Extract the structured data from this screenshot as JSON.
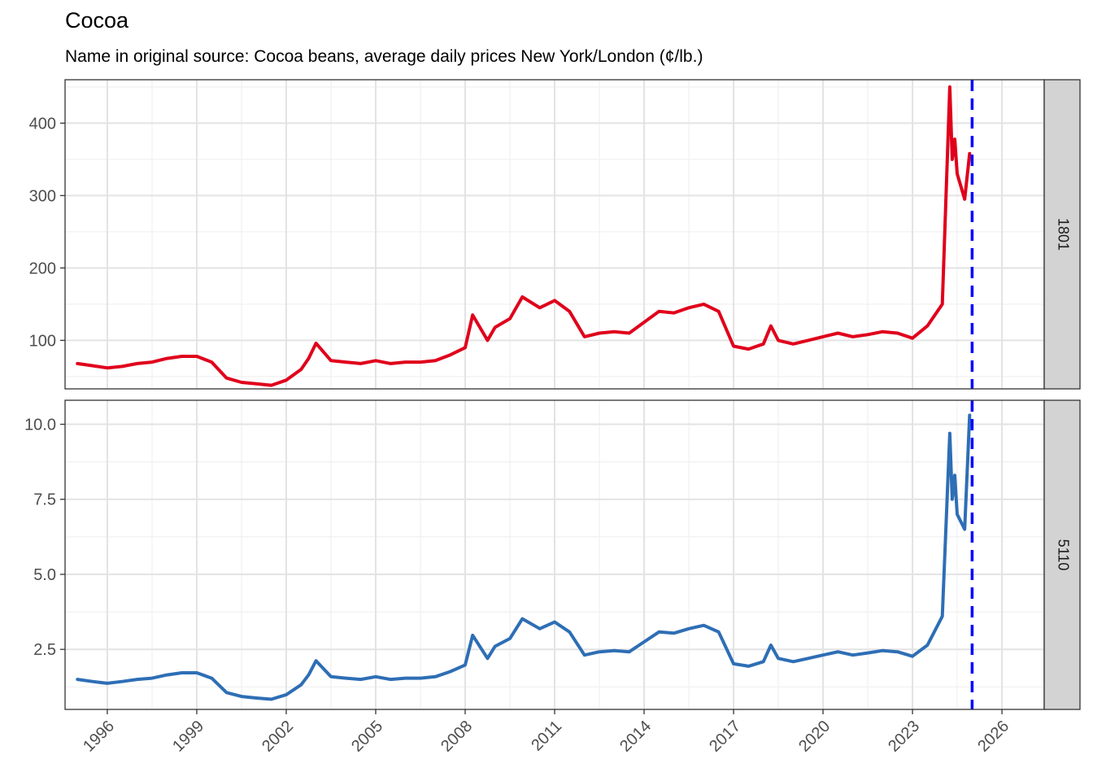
{
  "chart_data": {
    "type": "line",
    "title": "Cocoa",
    "subtitle": "Name in original source: Cocoa beans, average daily prices New York/London (¢/lb.)",
    "xlabel": "",
    "ylabel": "",
    "x_ticks": [
      "1996",
      "1999",
      "2002",
      "2005",
      "2008",
      "2011",
      "2014",
      "2017",
      "2020",
      "2023",
      "2026"
    ],
    "xlim": [
      "1994-08",
      "2027-06"
    ],
    "grid": true,
    "vline": {
      "x": "2025-01",
      "color": "#0000ff",
      "style": "dashed"
    },
    "panels": [
      {
        "label": "1801",
        "color": "#e0001b",
        "ylim": [
          33,
          460
        ],
        "y_ticks": [
          100,
          200,
          300,
          400
        ],
        "y_tick_labels": [
          "100",
          "200",
          "300",
          "400"
        ],
        "x": [
          "1995-01",
          "1995-07",
          "1996-01",
          "1996-07",
          "1997-01",
          "1997-07",
          "1998-01",
          "1998-07",
          "1999-01",
          "1999-07",
          "2000-01",
          "2000-07",
          "2001-01",
          "2001-07",
          "2002-01",
          "2002-07",
          "2002-10",
          "2003-01",
          "2003-07",
          "2004-01",
          "2004-07",
          "2005-01",
          "2005-07",
          "2006-01",
          "2006-07",
          "2007-01",
          "2007-07",
          "2008-01",
          "2008-04",
          "2008-10",
          "2009-01",
          "2009-07",
          "2009-12",
          "2010-07",
          "2011-01",
          "2011-07",
          "2012-01",
          "2012-07",
          "2013-01",
          "2013-07",
          "2014-01",
          "2014-07",
          "2015-01",
          "2015-07",
          "2016-01",
          "2016-07",
          "2017-01",
          "2017-07",
          "2018-01",
          "2018-04",
          "2018-07",
          "2019-01",
          "2019-07",
          "2020-01",
          "2020-07",
          "2021-01",
          "2021-07",
          "2022-01",
          "2022-07",
          "2023-01",
          "2023-07",
          "2024-01",
          "2024-04",
          "2024-05",
          "2024-06",
          "2024-07",
          "2024-10",
          "2024-12"
        ],
        "y": [
          68,
          65,
          62,
          64,
          68,
          70,
          75,
          78,
          78,
          70,
          48,
          42,
          40,
          38,
          45,
          60,
          75,
          96,
          72,
          70,
          68,
          72,
          68,
          70,
          70,
          72,
          80,
          90,
          135,
          100,
          118,
          130,
          160,
          145,
          155,
          140,
          105,
          110,
          112,
          110,
          125,
          140,
          138,
          145,
          150,
          140,
          92,
          88,
          95,
          120,
          100,
          95,
          100,
          105,
          110,
          105,
          108,
          112,
          110,
          103,
          120,
          150,
          450,
          350,
          378,
          330,
          295,
          358
        ]
      },
      {
        "label": "5110",
        "color": "#2e6eb5",
        "ylim": [
          0.5,
          10.8
        ],
        "y_ticks": [
          2.5,
          5.0,
          7.5,
          10.0
        ],
        "y_tick_labels": [
          "2.5",
          "5.0",
          "7.5",
          "10.0"
        ],
        "x": [
          "1995-01",
          "1995-07",
          "1996-01",
          "1996-07",
          "1997-01",
          "1997-07",
          "1998-01",
          "1998-07",
          "1999-01",
          "1999-07",
          "2000-01",
          "2000-07",
          "2001-01",
          "2001-07",
          "2002-01",
          "2002-07",
          "2002-10",
          "2003-01",
          "2003-07",
          "2004-01",
          "2004-07",
          "2005-01",
          "2005-07",
          "2006-01",
          "2006-07",
          "2007-01",
          "2007-07",
          "2008-01",
          "2008-04",
          "2008-10",
          "2009-01",
          "2009-07",
          "2009-12",
          "2010-07",
          "2011-01",
          "2011-07",
          "2012-01",
          "2012-07",
          "2013-01",
          "2013-07",
          "2014-01",
          "2014-07",
          "2015-01",
          "2015-07",
          "2016-01",
          "2016-07",
          "2017-01",
          "2017-07",
          "2018-01",
          "2018-04",
          "2018-07",
          "2019-01",
          "2019-07",
          "2020-01",
          "2020-07",
          "2021-01",
          "2021-07",
          "2022-01",
          "2022-07",
          "2023-01",
          "2023-07",
          "2024-01",
          "2024-04",
          "2024-05",
          "2024-06",
          "2024-07",
          "2024-10",
          "2024-12"
        ],
        "y": [
          1.5,
          1.43,
          1.37,
          1.43,
          1.5,
          1.54,
          1.65,
          1.72,
          1.72,
          1.54,
          1.06,
          0.93,
          0.88,
          0.84,
          0.99,
          1.32,
          1.65,
          2.12,
          1.59,
          1.54,
          1.5,
          1.59,
          1.5,
          1.54,
          1.54,
          1.59,
          1.76,
          1.98,
          2.97,
          2.2,
          2.6,
          2.86,
          3.52,
          3.19,
          3.41,
          3.08,
          2.31,
          2.42,
          2.46,
          2.42,
          2.75,
          3.08,
          3.04,
          3.19,
          3.3,
          3.08,
          2.02,
          1.94,
          2.09,
          2.64,
          2.2,
          2.09,
          2.2,
          2.31,
          2.42,
          2.31,
          2.38,
          2.46,
          2.42,
          2.27,
          2.64,
          3.6,
          9.7,
          7.5,
          8.3,
          7.0,
          6.5,
          10.3
        ]
      }
    ]
  }
}
